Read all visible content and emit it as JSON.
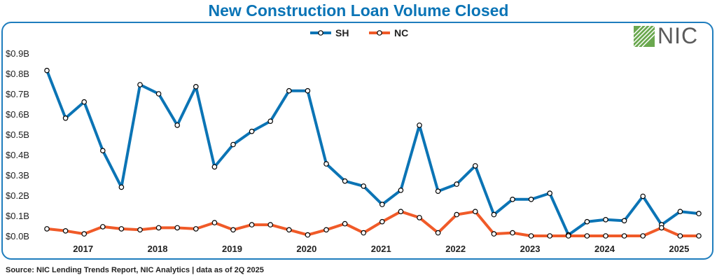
{
  "title": "New Construction Loan Volume Closed",
  "source": "Source: NIC Lending Trends Report, NIC Analytics | data as of 2Q 2025",
  "logo_text": "NIC",
  "colors": {
    "title": "#0a74b6",
    "sh": "#0b74b5",
    "nc": "#f05a28",
    "frame": "#1f7dbd"
  },
  "chart_data": {
    "type": "line",
    "title": "New Construction Loan Volume Closed",
    "xlabel": "",
    "ylabel": "",
    "ylim": [
      0,
      0.9
    ],
    "yticks": [
      "$0.0B",
      "$0.1B",
      "$0.2B",
      "$0.3B",
      "$0.4B",
      "$0.5B",
      "$0.6B",
      "$0.7B",
      "$0.8B",
      "$0.9B"
    ],
    "x_year_labels": [
      "2017",
      "2018",
      "2019",
      "2020",
      "2021",
      "2022",
      "2023",
      "2024",
      "2025"
    ],
    "x": [
      "3Q16",
      "4Q16",
      "1Q17",
      "2Q17",
      "3Q17",
      "4Q17",
      "1Q18",
      "2Q18",
      "3Q18",
      "4Q18",
      "1Q19",
      "2Q19",
      "3Q19",
      "4Q19",
      "1Q20",
      "2Q20",
      "3Q20",
      "4Q20",
      "1Q21",
      "2Q21",
      "3Q21",
      "4Q21",
      "1Q22",
      "2Q22",
      "3Q22",
      "4Q22",
      "1Q23",
      "2Q23",
      "3Q23",
      "4Q23",
      "1Q24",
      "2Q24",
      "3Q24",
      "4Q24",
      "1Q25",
      "2Q25"
    ],
    "legend_position": "top-center",
    "series": [
      {
        "name": "SH",
        "values": [
          0.815,
          0.58,
          0.66,
          0.42,
          0.24,
          0.745,
          0.7,
          0.545,
          0.735,
          0.34,
          0.45,
          0.515,
          0.565,
          0.715,
          0.715,
          0.355,
          0.27,
          0.245,
          0.155,
          0.225,
          0.545,
          0.22,
          0.255,
          0.345,
          0.105,
          0.18,
          0.18,
          0.21,
          0.005,
          0.07,
          0.08,
          0.075,
          0.195,
          0.055,
          0.12,
          0.11
        ]
      },
      {
        "name": "NC",
        "values": [
          0.035,
          0.025,
          0.01,
          0.045,
          0.035,
          0.03,
          0.04,
          0.04,
          0.035,
          0.065,
          0.03,
          0.055,
          0.055,
          0.03,
          0.005,
          0.03,
          0.06,
          0.015,
          0.07,
          0.12,
          0.09,
          0.015,
          0.105,
          0.12,
          0.01,
          0.015,
          0.0,
          0.0,
          0.0,
          0.0,
          0.0,
          0.0,
          0.0,
          0.04,
          0.0,
          0.0
        ]
      }
    ]
  }
}
